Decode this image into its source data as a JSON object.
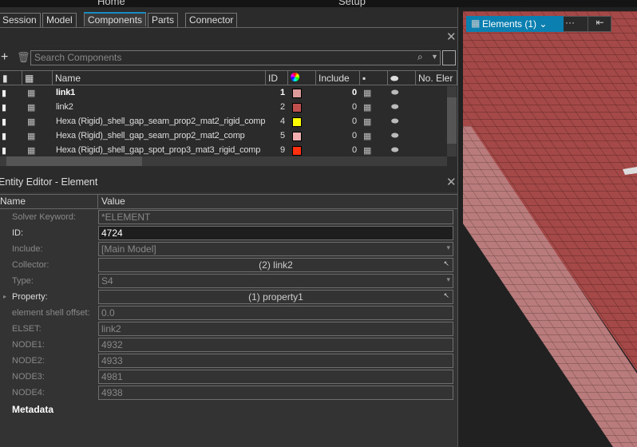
{
  "top_ribbon": {
    "left": "Home",
    "right": "Setup"
  },
  "tabs": [
    {
      "label": "Session"
    },
    {
      "label": "Model"
    },
    {
      "label": "Components",
      "active": true
    },
    {
      "label": "Parts"
    },
    {
      "label": "Connector"
    }
  ],
  "browser": {
    "search_placeholder": "Search Components",
    "columns": [
      "Name",
      "ID",
      "Include",
      "No. Eler"
    ],
    "rows": [
      {
        "name": "link1",
        "id": "1",
        "color": "#dc9a9a",
        "include": "0",
        "bold": true
      },
      {
        "name": "link2",
        "id": "2",
        "color": "#c0504d",
        "include": "0"
      },
      {
        "name": "Hexa (Rigid)_shell_gap_seam_prop2_mat2_rigid_comp",
        "id": "4",
        "color": "#ffff00",
        "include": "0"
      },
      {
        "name": "Hexa (Rigid)_shell_gap_seam_prop2_mat2_comp",
        "id": "5",
        "color": "#f0b0b0",
        "include": "0"
      },
      {
        "name": "Hexa (Rigid)_shell_gap_spot_prop3_mat3_rigid_comp",
        "id": "9",
        "color": "#ff3010",
        "include": "0"
      }
    ]
  },
  "editor": {
    "title": "Entity Editor - Element",
    "col_name": "Name",
    "col_value": "Value",
    "fields": [
      {
        "label": "Solver Keyword:",
        "value": "*ELEMENT"
      },
      {
        "label": "ID:",
        "value": "4724"
      },
      {
        "label": "Include:",
        "value": "[Main Model]"
      },
      {
        "label": "Collector:",
        "value": "(2) link2"
      },
      {
        "label": "Type:",
        "value": "S4"
      },
      {
        "label": "Property:",
        "value": "(1) property1"
      },
      {
        "label": "element shell offset:",
        "value": "0.0"
      },
      {
        "label": "ELSET:",
        "value": "link2"
      },
      {
        "label": "NODE1:",
        "value": "4932"
      },
      {
        "label": "NODE2:",
        "value": "4933"
      },
      {
        "label": "NODE3:",
        "value": "4981"
      },
      {
        "label": "NODE4:",
        "value": "4938"
      }
    ],
    "metadata": "Metadata"
  },
  "viewport": {
    "selector_label": "Elements (1)",
    "accent": "#0a7fb0",
    "mesh_dark": "#a54848",
    "mesh_light": "#b97b7b"
  }
}
